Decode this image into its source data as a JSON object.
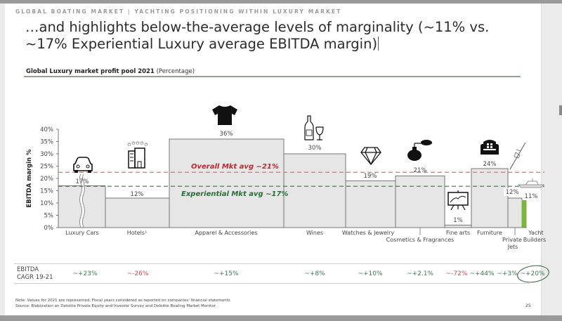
{
  "kicker": "GLOBAL BOATING MARKET | YACHTING POSITIONING WITHIN LUXURY MARKET",
  "title_line1": "…and highlights below-the-average levels of marginality (~11% vs.",
  "title_line2": "~17% Experiential Luxury average EBITDA margin)",
  "subtitle_bold": "Global Luxury market profit pool 2021",
  "subtitle_rest": "(Percentage)",
  "chart_data": {
    "type": "bar",
    "subtype": "variable-width (marimekko-style) bar chart",
    "title": "Global Luxury market profit pool 2021 (Percentage)",
    "ylabel": "EBITDA margin %",
    "xlabel": "",
    "ylim": [
      0,
      40
    ],
    "yticks": [
      "0%",
      "5%",
      "10%",
      "15%",
      "20%",
      "25%",
      "30%",
      "35%",
      "40%"
    ],
    "grid": false,
    "categories": [
      "Luxury Cars",
      "Hotels¹",
      "Apparel & Accessories",
      "Wines",
      "Watches & Jewelry",
      "Cosmetics & Fragrances",
      "Fine arts",
      "Furniture",
      "Private Jets",
      "Yacht Builders"
    ],
    "values": [
      17,
      12,
      36,
      30,
      19,
      21,
      1,
      24,
      12,
      11
    ],
    "value_labels": [
      "17%",
      "12%",
      "36%",
      "30%",
      "19%",
      "21%",
      "1%",
      "24%",
      "12%",
      "11%"
    ],
    "relative_widths": [
      67,
      91,
      163,
      88,
      71,
      70,
      38,
      52,
      20,
      6
    ],
    "icons": [
      "car-icon",
      "hotel-icon",
      "tshirt-icon",
      "wine-icon",
      "diamond-icon",
      "perfume-icon",
      "painting-icon",
      "armchair-icon",
      "jet-icon",
      "yacht-icon"
    ],
    "highlight": "Yacht Builders",
    "reference_lines": [
      {
        "label": "Overall Mkt avg ~21%",
        "value": 22.5,
        "color": "#e07070"
      },
      {
        "label": "Experiential Mkt avg ~17%",
        "value": 16.8,
        "color": "#2e7d3e"
      }
    ],
    "colors": {
      "bar": "#e6e6e6",
      "bar_edge": "#777777",
      "highlight": "#7db63a",
      "overall_label": "#c8232c",
      "experiential_label": "#2e6b3a"
    }
  },
  "cagr": {
    "header_line1": "EBITDA",
    "header_line2": "CAGR 19-21",
    "values": [
      {
        "label": "~+23%",
        "sign": "pos"
      },
      {
        "label": "~-26%",
        "sign": "neg"
      },
      {
        "label": "~+15%",
        "sign": "pos"
      },
      {
        "label": "~+8%",
        "sign": "pos"
      },
      {
        "label": "~+10%",
        "sign": "pos"
      },
      {
        "label": "~+2.1%",
        "sign": "pos"
      },
      {
        "label": "~-72%",
        "sign": "neg"
      },
      {
        "label": "~+44%",
        "sign": "pos"
      },
      {
        "label": "~+3%",
        "sign": "pos"
      },
      {
        "label": "~+20%",
        "sign": "pos",
        "circled": true
      }
    ]
  },
  "note_line1": "Note: Values for 2021 are represented. Fiscal years considered as reported on companies' financial statements",
  "note_line2": "Source: Elaboration on Deloitte Private Equity and Investor Survey and Deloitte Boating Market Monitor",
  "page_number": "25"
}
